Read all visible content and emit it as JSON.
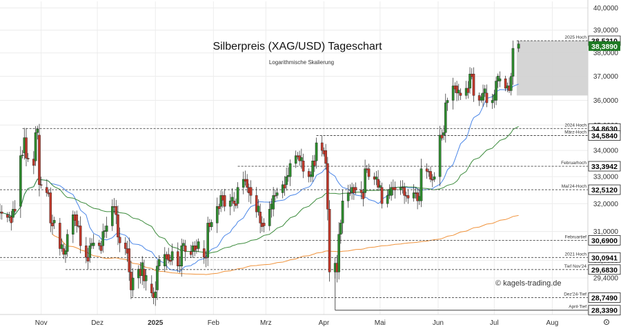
{
  "chart_data": {
    "type": "candlestick",
    "title": "Silberpreis (XAG/USD) Tageschart",
    "subtitle": "Logarithmische Skalierung",
    "watermark": "© kagels-trading.de",
    "y_scale": "log",
    "ylim": [
      28.2,
      40.3
    ],
    "xlim": [
      "2024-10-10",
      "2025-08-20"
    ],
    "y_ticks": [
      {
        "value": 40.0,
        "label": "40,0000"
      },
      {
        "value": 39.0,
        "label": "39,0000"
      },
      {
        "value": 38.0,
        "label": "38,0000"
      },
      {
        "value": 37.0,
        "label": "37,0000"
      },
      {
        "value": 36.0,
        "label": "36,0000"
      },
      {
        "value": 35.0,
        "label": "35,0000"
      },
      {
        "value": 34.0,
        "label": "34,0000"
      },
      {
        "value": 33.0,
        "label": "33,0000"
      },
      {
        "value": 32.0,
        "label": "32,0000"
      },
      {
        "value": 31.0,
        "label": "31,0000"
      },
      {
        "value": 30.0,
        "label": "30,0000"
      },
      {
        "value": 29.4,
        "label": "29,4000"
      }
    ],
    "x_ticks": [
      {
        "date": "2024-11-01",
        "label": "Nov",
        "bold": false
      },
      {
        "date": "2024-12-01",
        "label": "Dez",
        "bold": false
      },
      {
        "date": "2025-01-01",
        "label": "2025",
        "bold": true
      },
      {
        "date": "2025-02-01",
        "label": "Feb",
        "bold": false
      },
      {
        "date": "2025-03-01",
        "label": "Mrz",
        "bold": false
      },
      {
        "date": "2025-04-01",
        "label": "Apr",
        "bold": false
      },
      {
        "date": "2025-05-01",
        "label": "Mai",
        "bold": false
      },
      {
        "date": "2025-06-01",
        "label": "Jun",
        "bold": false
      },
      {
        "date": "2025-07-01",
        "label": "Jul",
        "bold": false
      },
      {
        "date": "2025-08-01",
        "label": "Aug",
        "bold": false
      }
    ],
    "levels": [
      {
        "value": 38.531,
        "price_label": "38,5310",
        "text": "2025 Hoch",
        "from": "2025-07-13",
        "style": "dashed",
        "tag_color": "#ffffff",
        "tag_text": "#000000"
      },
      {
        "value": 34.863,
        "price_label": "34,8630",
        "text": "2024 Hoch",
        "from": "2024-10-22",
        "style": "dashed",
        "tag_color": "#ffffff",
        "tag_text": "#000000"
      },
      {
        "value": 34.584,
        "price_label": "34,5840",
        "text": "März-Hoch",
        "from": "2025-03-28",
        "style": "dashed",
        "tag_color": "#ffffff",
        "tag_text": "#000000"
      },
      {
        "value": 33.3942,
        "price_label": "33,3942",
        "text": "Februarhoch",
        "from": "2025-02-14",
        "style": "dashed",
        "tag_color": "#ffffff",
        "tag_text": "#000000"
      },
      {
        "value": 32.512,
        "price_label": "32,5120",
        "text": "Mai'24-Hoch",
        "from": "2024-10-10",
        "style": "dashed",
        "tag_color": "#ffffff",
        "tag_text": "#000000"
      },
      {
        "value": 30.69,
        "price_label": "30,6900",
        "text": "Februartief",
        "from": "2025-02-28",
        "style": "dashed",
        "tag_color": "#ffffff",
        "tag_text": "#000000"
      },
      {
        "value": 30.0941,
        "price_label": "30,0941",
        "text": "2021 Hoch",
        "from": "2024-10-10",
        "style": "dashed",
        "tag_color": "#ffffff",
        "tag_text": "#000000"
      },
      {
        "value": 29.683,
        "price_label": "29,6830",
        "text": "Tief Nov'24",
        "from": "2024-11-14",
        "style": "dashed",
        "tag_color": "#ffffff",
        "tag_text": "#000000"
      },
      {
        "value": 28.749,
        "price_label": "28,7490",
        "text": "Dez'24-Tief",
        "from": "2024-12-19",
        "style": "dashed",
        "tag_color": "#ffffff",
        "tag_text": "#000000"
      },
      {
        "value": 28.339,
        "price_label": "28,3390",
        "text": "April-Tief",
        "from": "2025-04-07",
        "style": "solid",
        "tag_color": "#ffffff",
        "tag_text": "#000000"
      }
    ],
    "last_price": {
      "value": 38.389,
      "label": "38,3890",
      "color": "#1e7a23"
    },
    "highlight_zone": {
      "from": "2025-07-13",
      "to": "2025-08-20",
      "low": 36.2,
      "high": 38.531,
      "color": "#d3d3d3"
    },
    "colors": {
      "up": "#2e8b2e",
      "down": "#c0392b",
      "ma_fast": "#4a86e8",
      "ma_mid": "#3a8a3a",
      "ma_slow": "#f0923a"
    },
    "ohlc_anchors": [
      [
        "2024-10-10",
        31.7,
        31.7
      ],
      [
        "2024-10-14",
        31.6,
        31.5
      ],
      [
        "2024-10-17",
        31.5,
        31.8
      ],
      [
        "2024-10-21",
        31.9,
        33.8
      ],
      [
        "2024-10-23",
        33.9,
        34.5
      ],
      [
        "2024-10-24",
        34.5,
        33.7
      ],
      [
        "2024-10-29",
        33.6,
        34.7
      ],
      [
        "2024-10-31",
        34.6,
        32.7
      ],
      [
        "2024-11-04",
        32.6,
        32.4
      ],
      [
        "2024-11-06",
        32.4,
        31.3
      ],
      [
        "2024-11-08",
        31.3,
        31.4
      ],
      [
        "2024-11-11",
        31.3,
        30.4
      ],
      [
        "2024-11-13",
        30.4,
        30.2
      ],
      [
        "2024-11-15",
        30.3,
        30.9
      ],
      [
        "2024-11-18",
        30.9,
        31.6
      ],
      [
        "2024-11-20",
        31.6,
        31.2
      ],
      [
        "2024-11-22",
        31.2,
        30.5
      ],
      [
        "2024-11-25",
        30.5,
        30.1
      ],
      [
        "2024-11-27",
        30.1,
        30.5
      ],
      [
        "2024-11-29",
        30.5,
        30.6
      ],
      [
        "2024-12-02",
        30.6,
        30.5
      ],
      [
        "2024-12-04",
        30.5,
        31.0
      ],
      [
        "2024-12-06",
        31.0,
        31.2
      ],
      [
        "2024-12-09",
        31.2,
        31.9
      ],
      [
        "2024-12-11",
        31.9,
        31.6
      ],
      [
        "2024-12-12",
        31.6,
        30.8
      ],
      [
        "2024-12-13",
        30.8,
        30.6
      ],
      [
        "2024-12-16",
        30.6,
        30.4
      ],
      [
        "2024-12-18",
        30.4,
        29.6
      ],
      [
        "2024-12-19",
        29.6,
        29.0
      ],
      [
        "2024-12-20",
        29.0,
        29.4
      ],
      [
        "2024-12-23",
        29.4,
        29.7
      ],
      [
        "2024-12-26",
        29.7,
        29.3
      ],
      [
        "2024-12-30",
        29.2,
        28.9
      ],
      [
        "2025-01-02",
        29.0,
        29.8
      ],
      [
        "2025-01-06",
        29.8,
        30.2
      ],
      [
        "2025-01-08",
        30.2,
        30.0
      ],
      [
        "2025-01-10",
        30.0,
        30.3
      ],
      [
        "2025-01-13",
        30.3,
        29.8
      ],
      [
        "2025-01-15",
        29.8,
        30.5
      ],
      [
        "2025-01-17",
        30.5,
        30.3
      ],
      [
        "2025-01-21",
        30.3,
        30.5
      ],
      [
        "2025-01-23",
        30.5,
        30.4
      ],
      [
        "2025-01-27",
        30.4,
        30.1
      ],
      [
        "2025-01-29",
        30.1,
        31.3
      ],
      [
        "2025-02-03",
        31.3,
        31.9
      ],
      [
        "2025-02-05",
        31.9,
        32.3
      ],
      [
        "2025-02-07",
        32.3,
        31.9
      ],
      [
        "2025-02-10",
        31.9,
        32.1
      ],
      [
        "2025-02-12",
        32.1,
        32.0
      ],
      [
        "2025-02-14",
        32.0,
        32.6
      ],
      [
        "2025-02-17",
        32.6,
        32.9
      ],
      [
        "2025-02-19",
        32.9,
        32.6
      ],
      [
        "2025-02-21",
        32.6,
        32.3
      ],
      [
        "2025-02-24",
        32.3,
        31.7
      ],
      [
        "2025-02-26",
        31.7,
        31.3
      ],
      [
        "2025-02-28",
        31.3,
        31.2
      ],
      [
        "2025-03-03",
        31.2,
        31.8
      ],
      [
        "2025-03-05",
        31.8,
        32.3
      ],
      [
        "2025-03-07",
        32.3,
        32.4
      ],
      [
        "2025-03-10",
        32.4,
        32.7
      ],
      [
        "2025-03-12",
        32.7,
        33.0
      ],
      [
        "2025-03-14",
        33.0,
        33.5
      ],
      [
        "2025-03-17",
        33.5,
        33.8
      ],
      [
        "2025-03-19",
        33.8,
        33.6
      ],
      [
        "2025-03-21",
        33.6,
        33.2
      ],
      [
        "2025-03-24",
        33.2,
        33.0
      ],
      [
        "2025-03-26",
        33.0,
        33.6
      ],
      [
        "2025-03-28",
        33.6,
        34.3
      ],
      [
        "2025-03-31",
        34.3,
        34.0
      ],
      [
        "2025-04-02",
        34.0,
        33.5
      ],
      [
        "2025-04-03",
        33.5,
        31.8
      ],
      [
        "2025-04-04",
        31.8,
        29.6
      ],
      [
        "2025-04-07",
        29.6,
        29.9
      ],
      [
        "2025-04-08",
        29.9,
        29.6
      ],
      [
        "2025-04-09",
        29.6,
        30.9
      ],
      [
        "2025-04-10",
        30.9,
        31.3
      ],
      [
        "2025-04-11",
        31.3,
        32.1
      ],
      [
        "2025-04-14",
        32.1,
        32.4
      ],
      [
        "2025-04-16",
        32.4,
        32.6
      ],
      [
        "2025-04-18",
        32.6,
        32.5
      ],
      [
        "2025-04-21",
        32.5,
        32.4
      ],
      [
        "2025-04-23",
        32.4,
        33.3
      ],
      [
        "2025-04-25",
        33.3,
        33.0
      ],
      [
        "2025-04-28",
        33.0,
        32.9
      ],
      [
        "2025-04-30",
        32.9,
        32.6
      ],
      [
        "2025-05-02",
        32.6,
        32.0
      ],
      [
        "2025-05-05",
        32.0,
        32.3
      ],
      [
        "2025-05-07",
        32.3,
        32.6
      ],
      [
        "2025-05-09",
        32.6,
        32.5
      ],
      [
        "2025-05-12",
        32.5,
        32.6
      ],
      [
        "2025-05-14",
        32.6,
        32.3
      ],
      [
        "2025-05-16",
        32.3,
        32.2
      ],
      [
        "2025-05-19",
        32.2,
        32.4
      ],
      [
        "2025-05-21",
        32.4,
        32.1
      ],
      [
        "2025-05-23",
        32.1,
        33.3
      ],
      [
        "2025-05-26",
        33.3,
        33.2
      ],
      [
        "2025-05-28",
        33.2,
        32.9
      ],
      [
        "2025-05-30",
        32.9,
        33.0
      ],
      [
        "2025-06-02",
        33.0,
        34.6
      ],
      [
        "2025-06-04",
        34.6,
        34.7
      ],
      [
        "2025-06-05",
        34.7,
        35.9
      ],
      [
        "2025-06-06",
        35.9,
        36.0
      ],
      [
        "2025-06-09",
        36.0,
        36.6
      ],
      [
        "2025-06-11",
        36.6,
        36.3
      ],
      [
        "2025-06-13",
        36.3,
        36.2
      ],
      [
        "2025-06-16",
        36.2,
        36.5
      ],
      [
        "2025-06-18",
        36.5,
        37.1
      ],
      [
        "2025-06-20",
        37.1,
        36.2
      ],
      [
        "2025-06-23",
        36.2,
        36.0
      ],
      [
        "2025-06-25",
        36.0,
        36.3
      ],
      [
        "2025-06-27",
        36.3,
        35.9
      ],
      [
        "2025-06-30",
        35.9,
        36.0
      ],
      [
        "2025-07-02",
        36.0,
        36.8
      ],
      [
        "2025-07-04",
        36.8,
        36.9
      ],
      [
        "2025-07-07",
        36.9,
        36.5
      ],
      [
        "2025-07-08",
        36.5,
        36.6
      ],
      [
        "2025-07-09",
        36.6,
        36.4
      ],
      [
        "2025-07-10",
        36.4,
        37.0
      ],
      [
        "2025-07-11",
        37.0,
        38.2
      ],
      [
        "2025-07-14",
        38.2,
        38.389
      ]
    ]
  }
}
